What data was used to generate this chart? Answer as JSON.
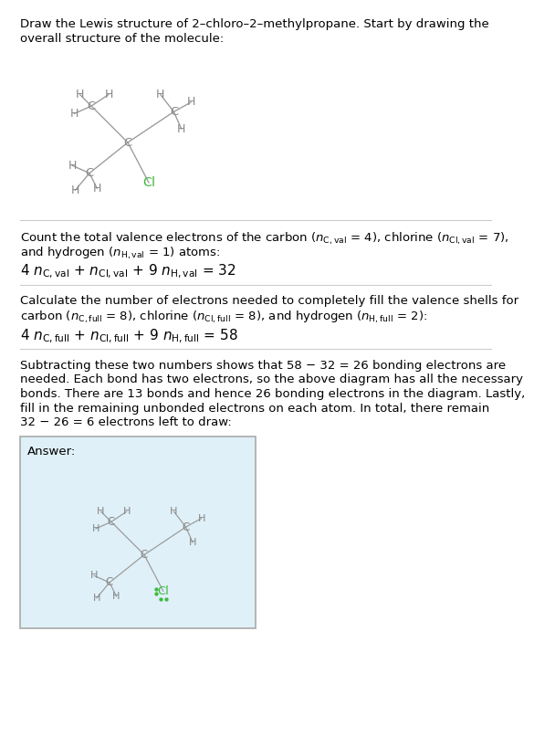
{
  "bg_color": "#ffffff",
  "text_color": "#000000",
  "atom_color": "#888888",
  "cl_color": "#3dba3d",
  "bond_color": "#999999",
  "answer_box_color": "#dff0f8",
  "answer_box_border": "#aaaaaa",
  "divider_color": "#cccccc",
  "title_lines": [
    "Draw the Lewis structure of 2–chloro–2–methylpropane. Start by drawing the",
    "overall structure of the molecule:"
  ],
  "s1_line1": "Count the total valence electrons of the carbon ($n_{\\mathrm{C,val}}$ = 4), chlorine ($n_{\\mathrm{Cl,val}}$ = 7),",
  "s1_line2": "and hydrogen ($n_{\\mathrm{H,val}}$ = 1) atoms:",
  "s1_eq": "4 $n_{\\mathrm{C,val}}$ + $n_{\\mathrm{Cl,val}}$ + 9 $n_{\\mathrm{H,val}}$ = 32",
  "s2_line1": "Calculate the number of electrons needed to completely fill the valence shells for",
  "s2_line2": "carbon ($n_{\\mathrm{C,full}}$ = 8), chlorine ($n_{\\mathrm{Cl,full}}$ = 8), and hydrogen ($n_{\\mathrm{H,full}}$ = 2):",
  "s2_eq": "4 $n_{\\mathrm{C,full}}$ + $n_{\\mathrm{Cl,full}}$ + 9 $n_{\\mathrm{H,full}}$ = 58",
  "s3_lines": [
    "Subtracting these two numbers shows that 58 − 32 = 26 bonding electrons are",
    "needed. Each bond has two electrons, so the above diagram has all the necessary",
    "bonds. There are 13 bonds and hence 26 bonding electrons in the diagram. Lastly,",
    "fill in the remaining unbonded electrons on each atom. In total, there remain",
    "32 − 26 = 6 electrons left to draw:"
  ],
  "answer_label": "Answer:"
}
